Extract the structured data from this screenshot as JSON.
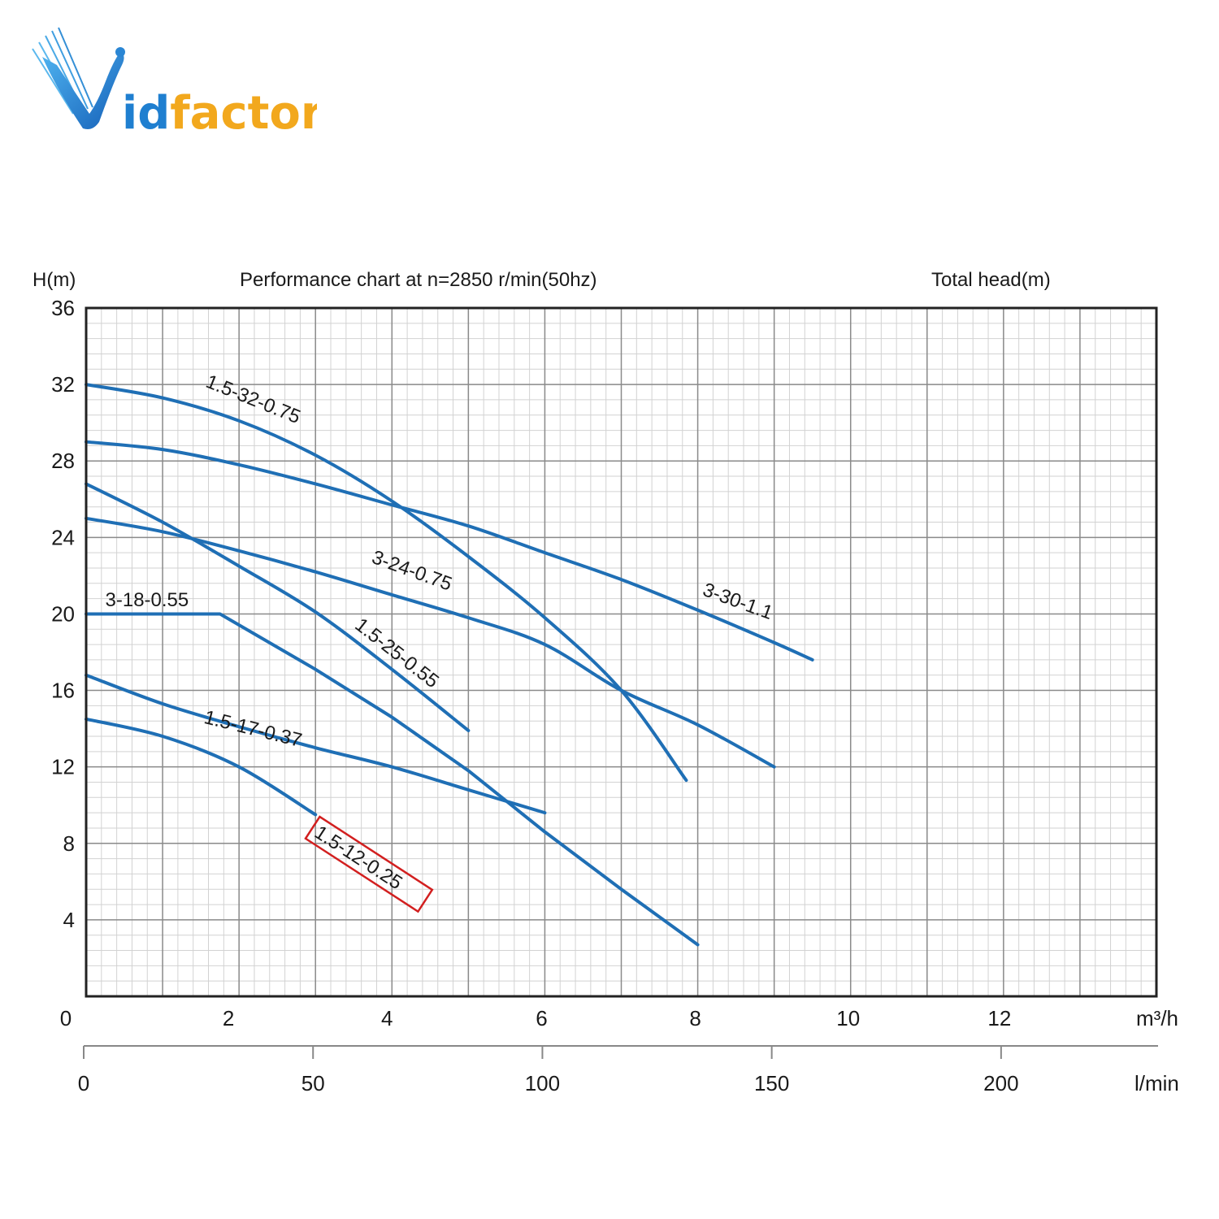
{
  "brand": {
    "logo_text": "Vidfactor",
    "logo_suffix": "idfactor",
    "logo_initial": "V",
    "primary_color": "#1f7fd0",
    "accent_color": "#f2a81d"
  },
  "chart_data": {
    "type": "line",
    "title": "Performance chart at n=2850 r/min(50hz)",
    "ylabel": "H(m)",
    "ylabel_right": "Total head(m)",
    "xlabel": "m³/h",
    "xlabel_secondary": "l/min",
    "xlim": [
      0,
      14
    ],
    "ylim": [
      0,
      36
    ],
    "x_ticks": [
      "0",
      "2",
      "4",
      "6",
      "8",
      "10",
      "12"
    ],
    "x_tick_values": [
      0,
      2,
      4,
      6,
      8,
      10,
      12
    ],
    "y_ticks": [
      "36",
      "32",
      "28",
      "24",
      "20",
      "16",
      "12",
      "8",
      "4"
    ],
    "y_tick_values": [
      36,
      32,
      28,
      24,
      20,
      16,
      12,
      8,
      4
    ],
    "secondary_x_ticks": [
      "0",
      "50",
      "100",
      "150",
      "200"
    ],
    "secondary_x_tick_values": [
      0,
      50,
      100,
      150,
      200
    ],
    "grid": true,
    "line_color": "#1f6fb5",
    "highlight_color": "#d21f1f",
    "series": [
      {
        "name": "1.5-32-0.75",
        "x": [
          0,
          1,
          2,
          3,
          4,
          5,
          6,
          7,
          7.85
        ],
        "y": [
          32,
          31.3,
          30.1,
          28.3,
          25.9,
          23.0,
          19.8,
          16.0,
          11.3
        ]
      },
      {
        "name": "3-30-1.1",
        "x": [
          0,
          1,
          2,
          3,
          4,
          5,
          6,
          7,
          8,
          9,
          9.5
        ],
        "y": [
          29,
          28.6,
          27.8,
          26.8,
          25.7,
          24.6,
          23.2,
          21.8,
          20.2,
          18.5,
          17.6
        ]
      },
      {
        "name": "3-24-0.75",
        "x": [
          0,
          1,
          2,
          3,
          4,
          5,
          6,
          7,
          8,
          9
        ],
        "y": [
          25,
          24.3,
          23.3,
          22.2,
          21.0,
          19.8,
          18.4,
          16.0,
          14.2,
          12.0
        ]
      },
      {
        "name": "1.5-25-0.55",
        "x": [
          0,
          1,
          2,
          3,
          4,
          5
        ],
        "y": [
          26.8,
          24.8,
          22.5,
          20.1,
          17.1,
          13.9
        ]
      },
      {
        "name": "3-18-0.55",
        "x": [
          0,
          1.75,
          3,
          4,
          5,
          6,
          7,
          8
        ],
        "y": [
          20,
          20,
          17.1,
          14.6,
          11.8,
          8.6,
          5.6,
          2.7
        ]
      },
      {
        "name": "1.5-17-0.37",
        "x": [
          0,
          1,
          2,
          3,
          4,
          5,
          6
        ],
        "y": [
          16.8,
          15.3,
          14.1,
          13.0,
          12.0,
          10.8,
          9.6
        ]
      },
      {
        "name": "1.5-12-0.25",
        "x": [
          0,
          1,
          2,
          3
        ],
        "y": [
          14.5,
          13.6,
          12.0,
          9.5
        ]
      }
    ],
    "labels": [
      {
        "text": "1.5-32-0.75",
        "series": "1.5-32-0.75",
        "highlighted": false
      },
      {
        "text": "3-30-1.1",
        "series": "3-30-1.1",
        "highlighted": false
      },
      {
        "text": "3-24-0.75",
        "series": "3-24-0.75",
        "highlighted": false
      },
      {
        "text": "1.5-25-0.55",
        "series": "1.5-25-0.55",
        "highlighted": false
      },
      {
        "text": "3-18-0.55",
        "series": "3-18-0.55",
        "highlighted": false
      },
      {
        "text": "1.5-17-0.37",
        "series": "1.5-17-0.37",
        "highlighted": false
      },
      {
        "text": "1.5-12-0.25",
        "series": "1.5-12-0.25",
        "highlighted": true
      }
    ]
  }
}
